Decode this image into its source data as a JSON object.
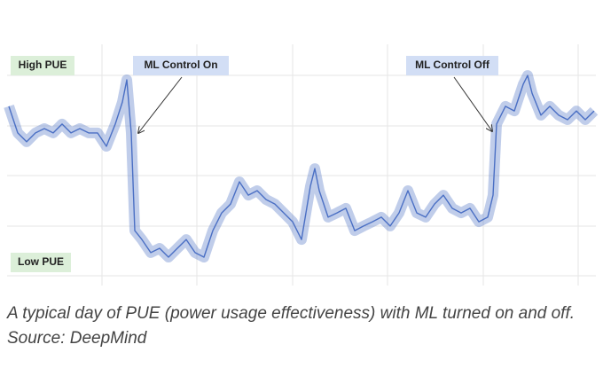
{
  "chart_data": {
    "type": "line",
    "annotations": [
      "High PUE",
      "Low PUE",
      "ML Control On",
      "ML Control Off"
    ],
    "caption": "A typical day of PUE (power usage effectiveness) with ML turned on and off. Source: DeepMind",
    "xlim": [
      8,
      672
    ],
    "ylim": [
      0,
      100
    ],
    "grid": true,
    "series": [
      {
        "color": "#4a6fc4",
        "x": [
          10,
          20,
          30,
          40,
          50,
          60,
          70,
          80,
          90,
          100,
          110,
          120,
          130,
          138,
          143,
          148,
          152,
          160,
          170,
          180,
          190,
          200,
          210,
          220,
          230,
          240,
          250,
          260,
          270,
          280,
          290,
          300,
          310,
          320,
          330,
          340,
          345,
          350,
          355,
          360,
          370,
          380,
          390,
          400,
          410,
          420,
          430,
          440,
          450,
          460,
          470,
          480,
          490,
          500,
          510,
          520,
          530,
          540,
          550,
          556,
          560,
          570,
          580,
          590,
          595,
          600,
          610,
          620,
          630,
          640,
          650,
          660,
          670
        ],
        "values": [
          74.1,
          63,
          59.3,
          63,
          64.8,
          63,
          66.7,
          63,
          64.8,
          63,
          63,
          57.4,
          66.7,
          75.9,
          85.2,
          63,
          22.2,
          18.5,
          13,
          14.8,
          11.1,
          14.8,
          18.5,
          13,
          11.1,
          22.2,
          29.6,
          33.3,
          42.6,
          37,
          38.9,
          35.2,
          33.3,
          29.6,
          25.9,
          18.5,
          29.6,
          40.7,
          48.1,
          38.9,
          27.8,
          29.6,
          31.5,
          22.2,
          24.1,
          25.9,
          27.8,
          24.1,
          29.6,
          38.9,
          29.6,
          27.8,
          33.3,
          37,
          31.5,
          29.6,
          31.5,
          25.9,
          27.8,
          37,
          66.7,
          74.1,
          72.2,
          83.3,
          87,
          79.6,
          70.4,
          74.1,
          70.4,
          68.5,
          72.2,
          68.5,
          72.2
        ]
      }
    ]
  }
}
